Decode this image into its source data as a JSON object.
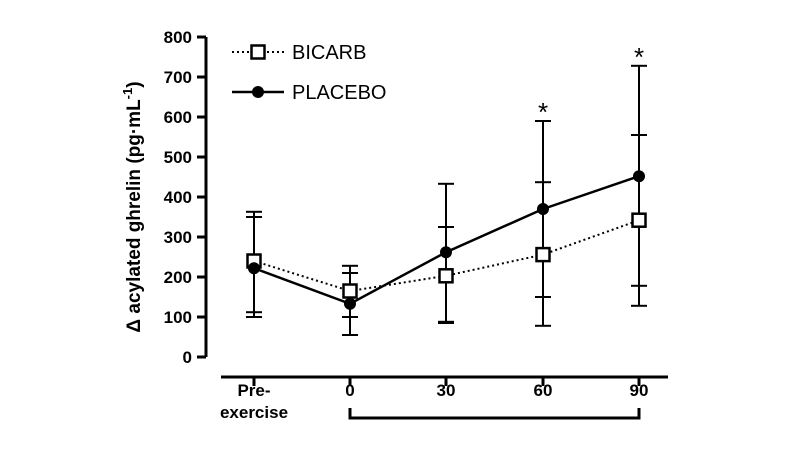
{
  "chart_data": {
    "type": "line",
    "title": "",
    "xlabel": "",
    "ylabel": "Δ acylated ghrelin (pg·mL",
    "ylabel_sup": "-1",
    "ylabel_close": ")",
    "ylim": [
      0,
      800
    ],
    "yticks": [
      "0",
      "100",
      "200",
      "300",
      "400",
      "500",
      "600",
      "700",
      "800"
    ],
    "categories": [
      {
        "line1": "Pre-",
        "line2": "exercise"
      },
      {
        "line1": "0",
        "line2": ""
      },
      {
        "line1": "30",
        "line2": ""
      },
      {
        "line1": "60",
        "line2": ""
      },
      {
        "line1": "90",
        "line2": ""
      }
    ],
    "legend_position": "top-left",
    "grid": false,
    "series": [
      {
        "name": "BICARB",
        "marker": "open-square",
        "line_style": "dotted",
        "values": [
          240,
          165,
          203,
          256,
          342
        ],
        "err_upper": [
          363,
          228,
          325,
          437,
          555
        ],
        "err_lower": [
          112,
          100,
          85,
          150,
          178
        ]
      },
      {
        "name": "PLACEBO",
        "marker": "filled-circle",
        "line_style": "solid",
        "values": [
          222,
          133,
          262,
          370,
          452
        ],
        "err_upper": [
          350,
          210,
          433,
          590,
          728
        ],
        "err_lower": [
          100,
          55,
          88,
          78,
          128
        ]
      }
    ],
    "annotations": [
      {
        "category_index": 3,
        "text": "*",
        "y": 590
      },
      {
        "category_index": 4,
        "text": "*",
        "y": 728
      }
    ]
  }
}
